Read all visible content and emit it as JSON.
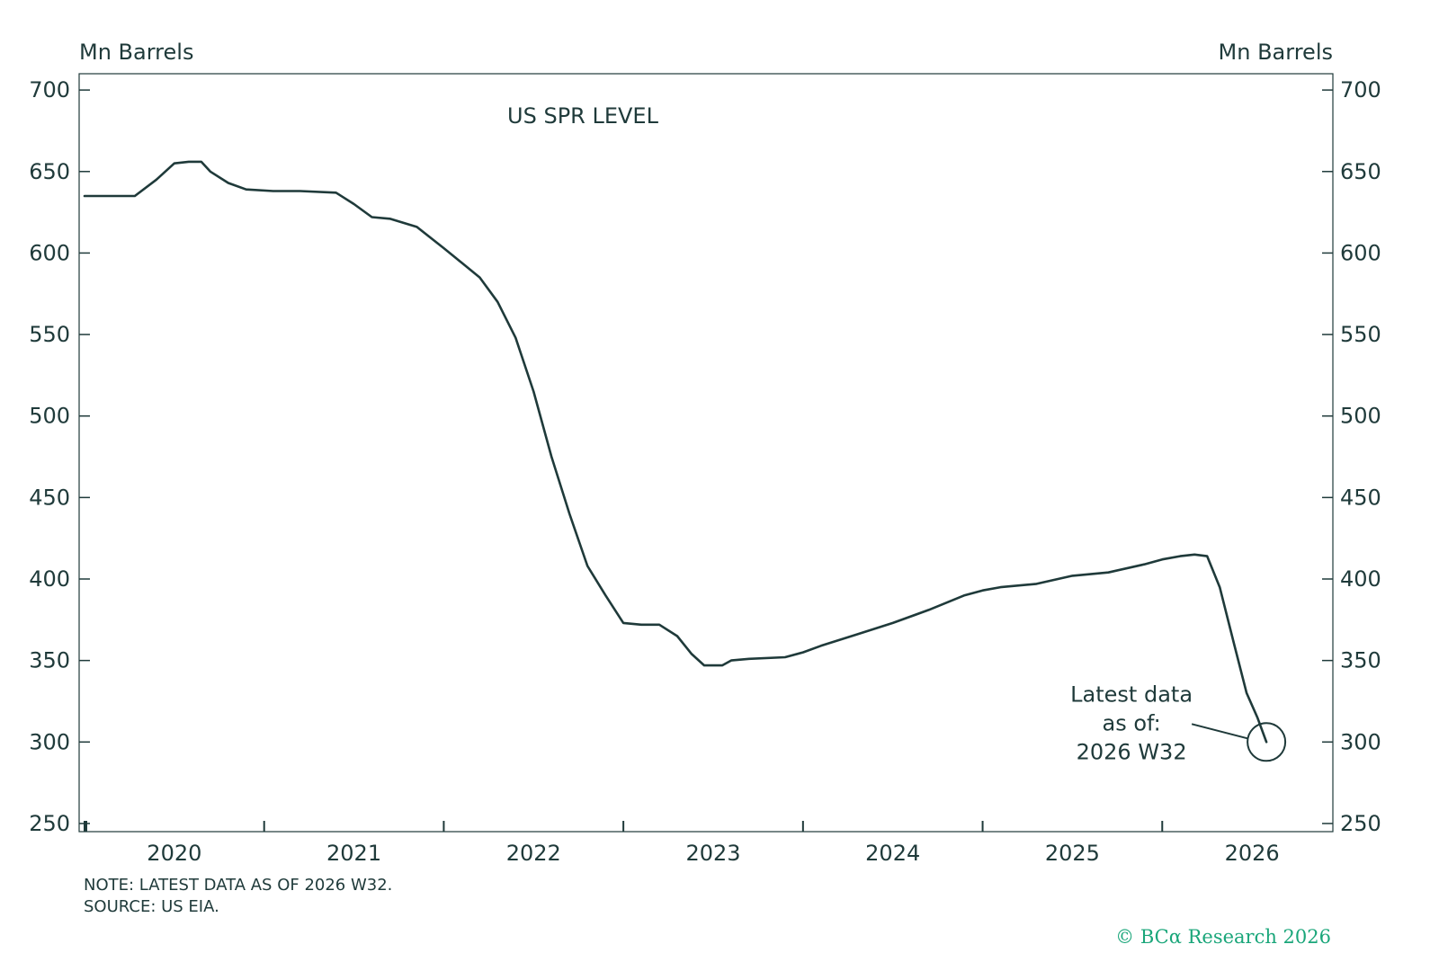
{
  "chart_data": {
    "type": "line",
    "title": "US SPR LEVEL",
    "ylabel_left": "Mn Barrels",
    "ylabel_right": "Mn Barrels",
    "ylim": [
      245,
      710
    ],
    "yticks": [
      250,
      300,
      350,
      400,
      450,
      500,
      550,
      600,
      650,
      700
    ],
    "xlim": [
      2019.47,
      2026.45
    ],
    "xtick_years": [
      2020,
      2021,
      2022,
      2023,
      2024,
      2025,
      2026
    ],
    "xtick_labels": [
      "2020",
      "2021",
      "2022",
      "2023",
      "2024",
      "2025",
      "2026"
    ],
    "grid": false,
    "series": [
      {
        "x": [
          2019.5,
          2019.78,
          2019.9,
          2020.0,
          2020.08,
          2020.15,
          2020.2,
          2020.3,
          2020.4,
          2020.55,
          2020.7,
          2020.9,
          2021.0,
          2021.1,
          2021.2,
          2021.35,
          2021.5,
          2021.6,
          2021.7,
          2021.8,
          2021.9,
          2022.0,
          2022.1,
          2022.2,
          2022.3,
          2022.4,
          2022.5,
          2022.6,
          2022.7,
          2022.8,
          2022.88,
          2022.95,
          2023.05,
          2023.1,
          2023.2,
          2023.4,
          2023.5,
          2023.6,
          2023.8,
          2024.0,
          2024.2,
          2024.4,
          2024.5,
          2024.6,
          2024.8,
          2025.0,
          2025.2,
          2025.4,
          2025.5,
          2025.6,
          2025.68,
          2025.75,
          2025.82,
          2025.9,
          2025.97,
          2026.03,
          2026.08
        ],
        "y": [
          635,
          635,
          645,
          655,
          656,
          656,
          650,
          643,
          639,
          638,
          638,
          637,
          630,
          622,
          621,
          616,
          603,
          594,
          585,
          570,
          548,
          515,
          475,
          440,
          408,
          390,
          373,
          372,
          372,
          365,
          354,
          347,
          347,
          350,
          351,
          352,
          355,
          359,
          366,
          373,
          381,
          390,
          393,
          395,
          397,
          402,
          404,
          409,
          412,
          414,
          415,
          414,
          395,
          360,
          330,
          315,
          300
        ]
      }
    ],
    "annotation": {
      "lines": [
        "Latest data",
        "as of:",
        "2026 W32"
      ],
      "x": 2026.08,
      "y": 300
    }
  },
  "note": "NOTE: LATEST DATA AS OF 2026 W32.",
  "source": "SOURCE: US EIA.",
  "credit": "© BCα Research 2026"
}
